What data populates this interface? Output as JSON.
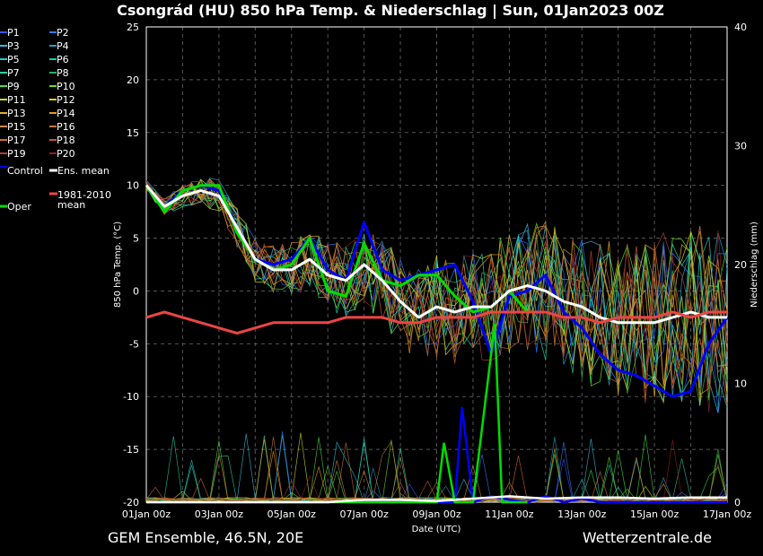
{
  "title": "Csongrád  (HU)  850 hPa Temp. & Niederschlag | Sun, 01Jan2023 00Z",
  "footer_left": "GEM Ensemble, 46.5N, 20E",
  "footer_right": "Wetterzentrale.de",
  "chart_data": {
    "type": "line",
    "title": "Csongrád  (HU)  850 hPa Temp. & Niederschlag | Sun, 01Jan2023 00Z",
    "xlabel": "Date (UTC)",
    "ylabel": "850 hPa Temp. (°C)",
    "y2label": "Niederschlag (mm)",
    "ylim": [
      -20,
      25
    ],
    "y2lim": [
      0,
      40
    ],
    "yticks": [
      25,
      20,
      15,
      10,
      5,
      0,
      -5,
      -10,
      -15,
      -20
    ],
    "y2ticks": [
      40,
      30,
      20,
      10,
      0
    ],
    "xlim_days": [
      0,
      16
    ],
    "x_tick_labels": [
      "01Jan 00z",
      "03Jan 00z",
      "05Jan 00z",
      "07Jan 00z",
      "09Jan 00z",
      "11Jan 00z",
      "13Jan 00z",
      "15Jan 00z",
      "17Jan 00z"
    ],
    "grid": true,
    "legend_position": "left",
    "legend": [
      {
        "name": "P1",
        "color": "#3355ff"
      },
      {
        "name": "P2",
        "color": "#3377ff"
      },
      {
        "name": "P3",
        "color": "#33bbdd"
      },
      {
        "name": "P4",
        "color": "#22a0c8"
      },
      {
        "name": "P5",
        "color": "#22c8c8"
      },
      {
        "name": "P6",
        "color": "#20c8a0"
      },
      {
        "name": "P7",
        "color": "#22d4a8"
      },
      {
        "name": "P8",
        "color": "#30b060"
      },
      {
        "name": "P9",
        "color": "#44e044"
      },
      {
        "name": "P10",
        "color": "#66dd22"
      },
      {
        "name": "P11",
        "color": "#ccdd22"
      },
      {
        "name": "P12",
        "color": "#ddcc22"
      },
      {
        "name": "P13",
        "color": "#ddb020"
      },
      {
        "name": "P14",
        "color": "#e09a20"
      },
      {
        "name": "P15",
        "color": "#d08a30"
      },
      {
        "name": "P16",
        "color": "#c07830"
      },
      {
        "name": "P17",
        "color": "#d86a30"
      },
      {
        "name": "P18",
        "color": "#c85a30"
      },
      {
        "name": "P19",
        "color": "#b04030"
      },
      {
        "name": "P20",
        "color": "#902020"
      },
      {
        "name": "Control",
        "color": "#0000ff"
      },
      {
        "name": "Ens. mean",
        "color": "#ffffff"
      },
      {
        "name": "1981-2010 mean",
        "color": "#ee4444"
      },
      {
        "name": "Oper",
        "color": "#00dd00"
      }
    ],
    "series": [
      {
        "name": "Control",
        "color": "#0000ff",
        "x": [
          0,
          0.5,
          1,
          1.5,
          2,
          2.5,
          3,
          3.5,
          4,
          4.5,
          5,
          5.5,
          6,
          6.5,
          7,
          7.5,
          8,
          8.5,
          9,
          9.5,
          10,
          10.5,
          11,
          11.5,
          12,
          12.5,
          13,
          13.5,
          14,
          14.5,
          15,
          15.5,
          16
        ],
        "y": [
          10,
          8,
          9.5,
          10,
          9.5,
          6,
          3,
          2.5,
          3,
          5,
          2,
          1,
          6.5,
          2,
          1,
          1.5,
          2,
          2.5,
          -1,
          -6,
          -0.5,
          0,
          1.5,
          -2,
          -3.5,
          -6,
          -7.5,
          -8,
          -9,
          -10,
          -9.5,
          -5,
          -2.5
        ]
      },
      {
        "name": "Oper",
        "color": "#00dd00",
        "x": [
          0,
          0.5,
          1,
          1.5,
          2,
          2.5,
          3,
          3.5,
          4,
          4.5,
          5,
          5.5,
          6,
          6.5,
          7,
          7.5,
          8,
          8.5,
          9,
          9.5,
          10,
          10.5
        ],
        "y": [
          10,
          7.5,
          9.5,
          10,
          10,
          5.5,
          3,
          2,
          2.5,
          5,
          0,
          -0.5,
          4.5,
          1,
          0.5,
          1.5,
          1.5,
          -0.5,
          -2,
          -1.5,
          0,
          -2
        ]
      },
      {
        "name": "Ens. mean",
        "color": "#ffffff",
        "x": [
          0,
          0.5,
          1,
          1.5,
          2,
          2.5,
          3,
          3.5,
          4,
          4.5,
          5,
          5.5,
          6,
          6.5,
          7,
          7.5,
          8,
          8.5,
          9,
          9.5,
          10,
          10.5,
          11,
          11.5,
          12,
          12.5,
          13,
          13.5,
          14,
          14.5,
          15,
          15.5,
          16
        ],
        "y": [
          10,
          8,
          9,
          9.5,
          9,
          6,
          3,
          2,
          2,
          3,
          1.5,
          1,
          2.5,
          1,
          -1,
          -2.5,
          -1.5,
          -2,
          -1.5,
          -1.5,
          0,
          0.5,
          0,
          -1,
          -1.5,
          -2.5,
          -3,
          -3,
          -3,
          -2.5,
          -2,
          -2.5,
          -2.5
        ]
      },
      {
        "name": "1981-2010 mean",
        "color": "#ee4444",
        "x": [
          0,
          0.5,
          1,
          1.5,
          2,
          2.5,
          3,
          3.5,
          4,
          4.5,
          5,
          5.5,
          6,
          6.5,
          7,
          7.5,
          8,
          8.5,
          9,
          9.5,
          10,
          10.5,
          11,
          11.5,
          12,
          12.5,
          13,
          13.5,
          14,
          14.5,
          15,
          15.5,
          16
        ],
        "y": [
          -2.5,
          -2,
          -2.5,
          -3,
          -3.5,
          -4,
          -3.5,
          -3,
          -3,
          -3,
          -3,
          -2.5,
          -2.5,
          -2.5,
          -3,
          -3,
          -2.5,
          -2.5,
          -2.5,
          -2,
          -2,
          -2,
          -2,
          -2.5,
          -2.5,
          -3,
          -2.5,
          -2.5,
          -2.5,
          -2,
          -2.5,
          -2,
          -2
        ]
      }
    ],
    "precipitation_series": [
      {
        "name": "Control",
        "color": "#0000ff",
        "x": [
          0,
          1,
          2,
          3,
          4,
          5,
          6,
          7,
          7.5,
          8,
          8.5,
          8.7,
          9,
          9.5,
          10,
          10.5,
          11,
          11.5,
          12,
          12.5,
          13,
          14,
          15,
          16
        ],
        "y": [
          0,
          0,
          0,
          0,
          0,
          0,
          0,
          0,
          0,
          0,
          0,
          8,
          0,
          0.5,
          0.2,
          0,
          0.5,
          0,
          0.3,
          0,
          0,
          0,
          0,
          0
        ]
      },
      {
        "name": "Oper",
        "color": "#00dd00",
        "x": [
          0,
          1,
          2,
          3,
          4,
          5,
          6,
          7,
          7.5,
          8,
          8.2,
          8.5,
          9,
          9.6,
          9.8,
          10,
          10.5
        ],
        "y": [
          0,
          0,
          0,
          0,
          0,
          0,
          0,
          0,
          0,
          0,
          5,
          0,
          0,
          15,
          0,
          0,
          0
        ]
      },
      {
        "name": "Ens. mean",
        "color": "#ffffff",
        "x": [
          0,
          1,
          2,
          3,
          4,
          5,
          6,
          7,
          8,
          9,
          10,
          11,
          12,
          13,
          14,
          15,
          16
        ],
        "y": [
          0,
          0,
          0,
          0,
          0,
          0,
          0.2,
          0.2,
          0.1,
          0.3,
          0.5,
          0.3,
          0.4,
          0.4,
          0.3,
          0.4,
          0.4
        ]
      }
    ]
  }
}
